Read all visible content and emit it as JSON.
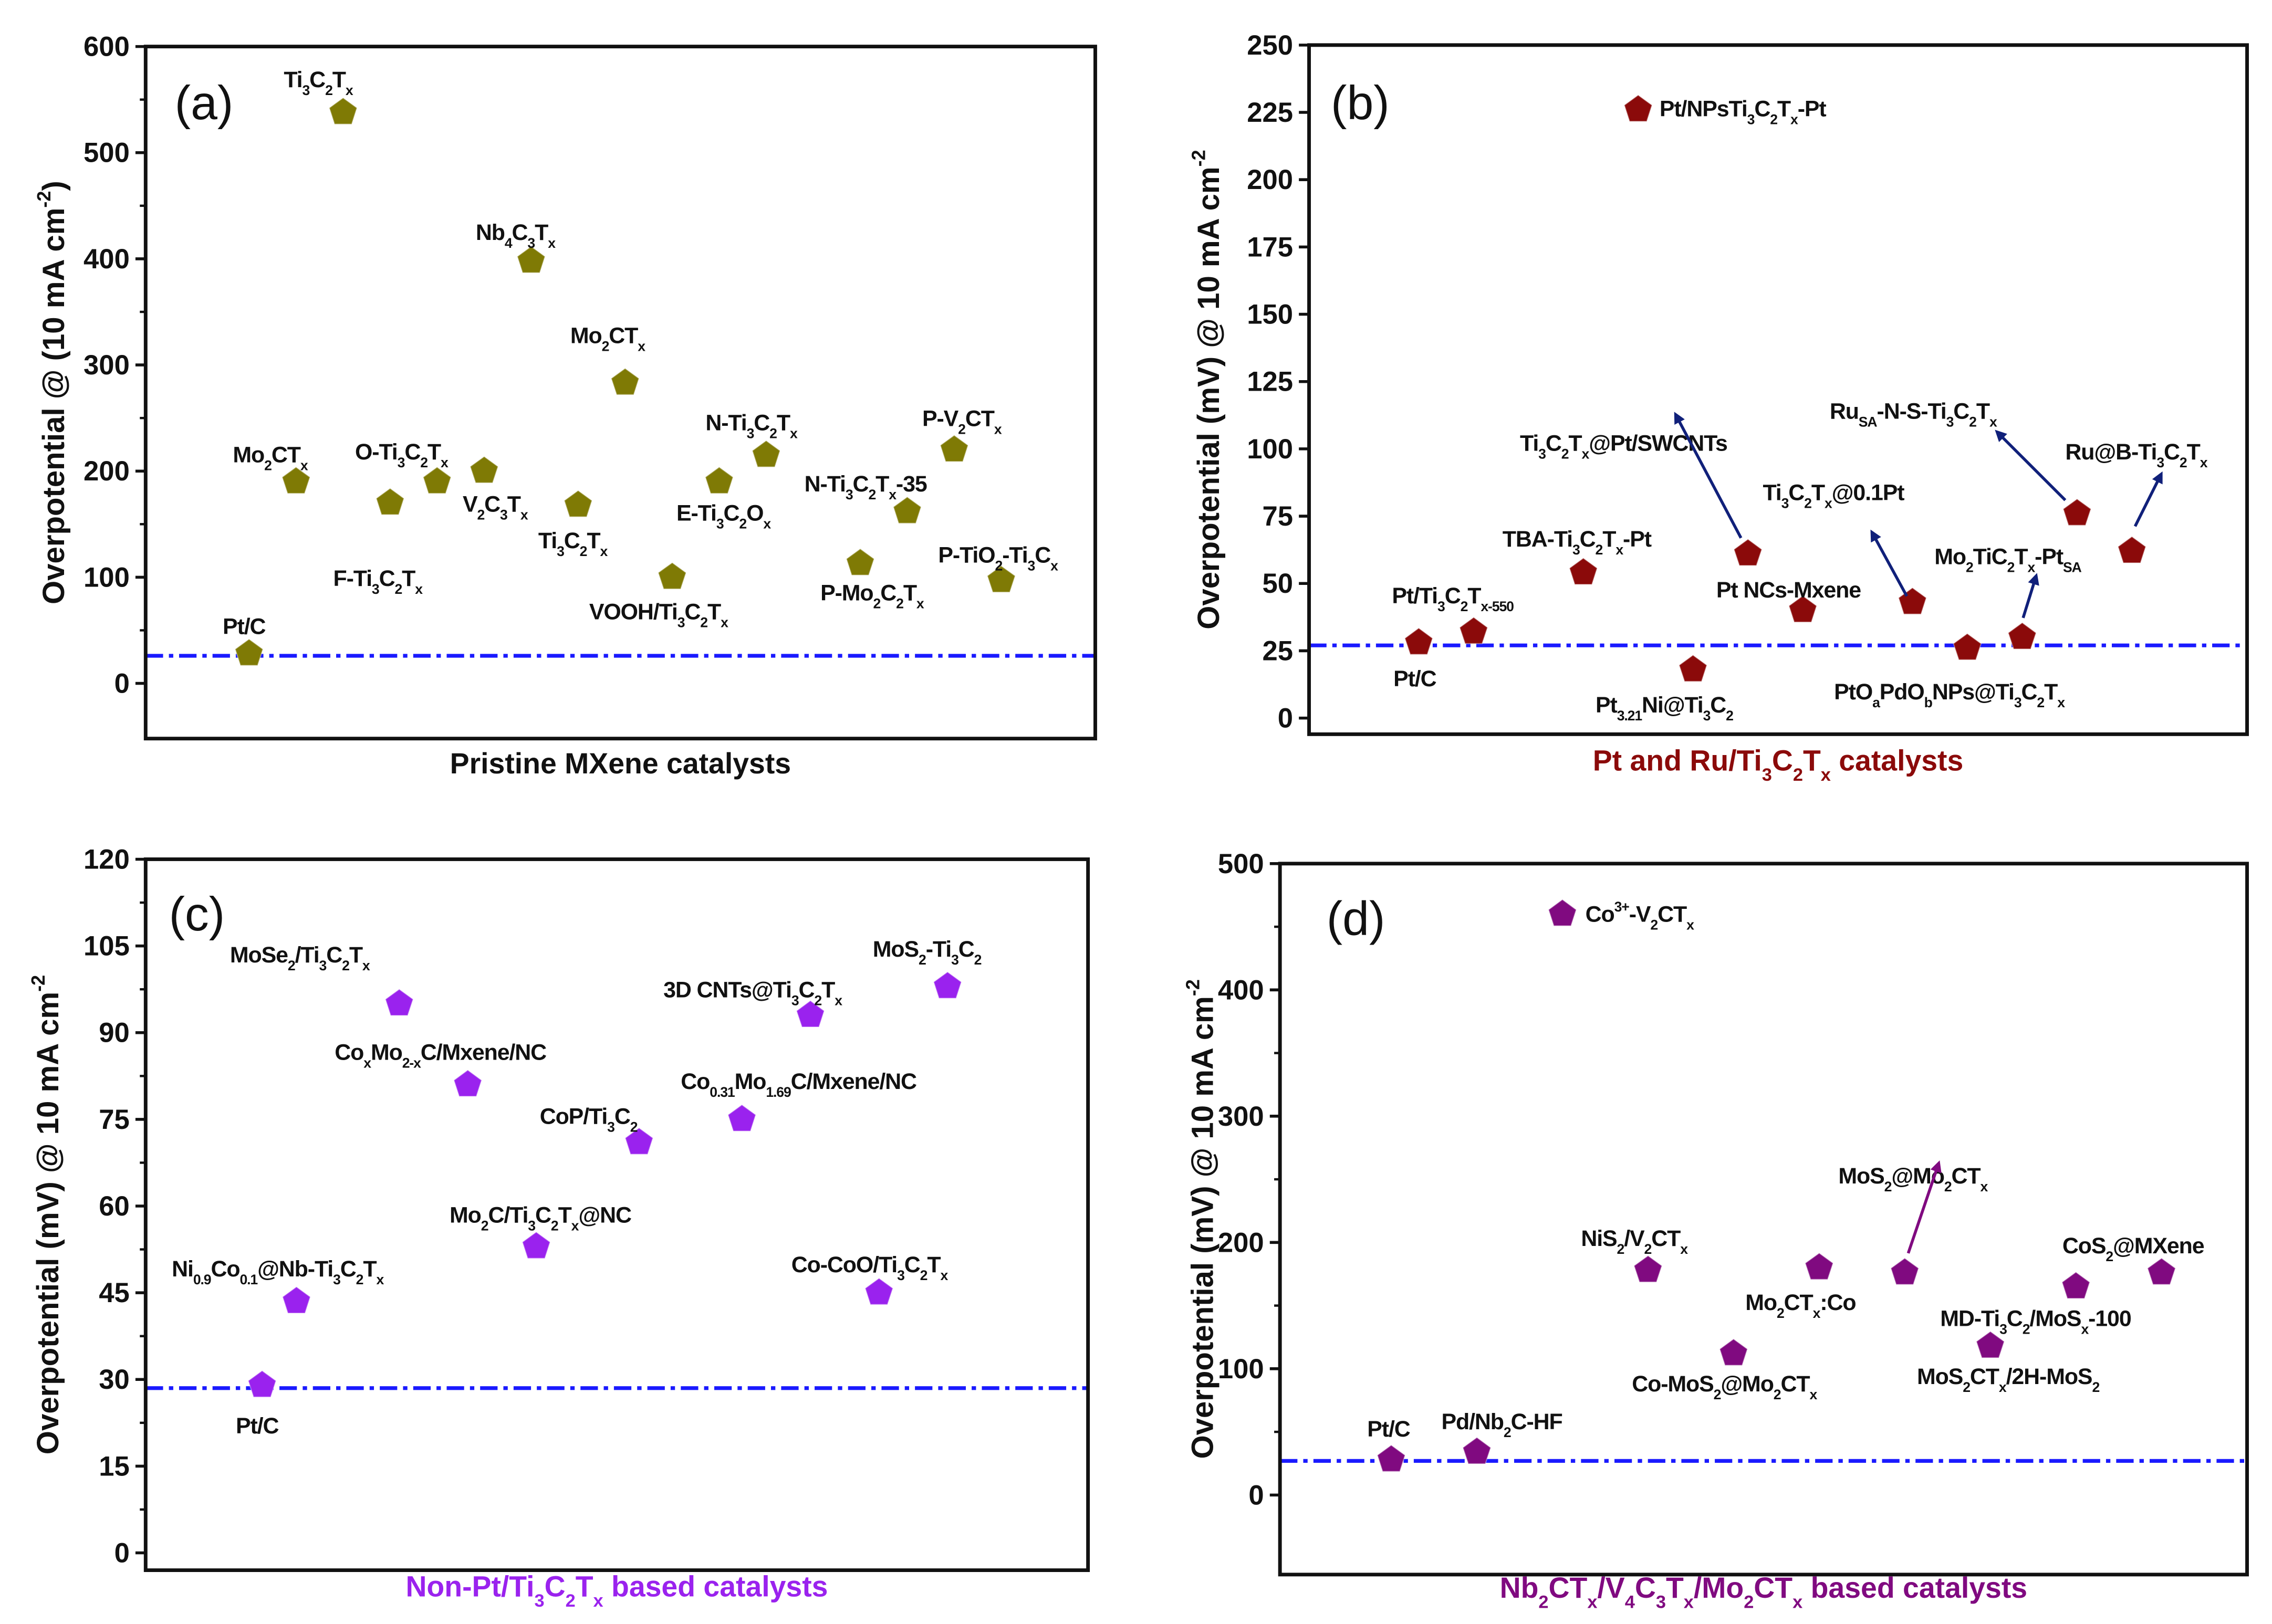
{
  "chart_data": [
    {
      "type": "scatter",
      "panel_label": "(a)",
      "title": "",
      "xlabel": "Pristine MXene catalysts",
      "xlabel_color": "#111111",
      "ylabel": "Overpotential @ (10 mA cm^{-2})",
      "ylim": [
        -52,
        600
      ],
      "xlim": [
        -2.2,
        18
      ],
      "yticks": [
        0,
        100,
        200,
        300,
        400,
        500,
        600
      ],
      "yminor_step": 50,
      "marker_color": "#7f7a05",
      "reference_line": {
        "value": 26,
        "color": "#1a1aff",
        "style": "dash-dot"
      },
      "points": [
        {
          "label": "Pt/C",
          "x": 0,
          "y": 28
        },
        {
          "label": "Mo_{2}CT_{x}",
          "x": 1,
          "y": 190
        },
        {
          "label": "Ti_{3}C_{2}T_{x}",
          "x": 2,
          "y": 538
        },
        {
          "label": "F-Ti_{3}C_{2}T_{x}",
          "x": 3,
          "y": 170
        },
        {
          "label": "O-Ti_{3}C_{2}T_{x}",
          "x": 4,
          "y": 190
        },
        {
          "label": "V_{2}C_{3}T_{x}",
          "x": 5,
          "y": 200
        },
        {
          "label": "Nb_{4}C_{3}T_{x}",
          "x": 6,
          "y": 398
        },
        {
          "label": "Ti_{3}C_{2}T_{x}",
          "x": 7,
          "y": 168
        },
        {
          "label": "Mo_{2}CT_{x}",
          "x": 8,
          "y": 283
        },
        {
          "label": "VOOH/Ti_{3}C_{2}T_{x}",
          "x": 9,
          "y": 100
        },
        {
          "label": "E-Ti_{3}C_{2}O_{x}",
          "x": 10,
          "y": 190
        },
        {
          "label": "N-Ti_{3}C_{2}T_{x}",
          "x": 11,
          "y": 215
        },
        {
          "label": "P-Mo_{2}C_{2}T_{x}",
          "x": 13,
          "y": 113
        },
        {
          "label": "N-Ti_{3}C_{2}T_{x}-35",
          "x": 14,
          "y": 162
        },
        {
          "label": "P-V_{2}CT_{x}",
          "x": 15,
          "y": 220
        },
        {
          "label": "P-TiO_{2}-Ti_{3}C_{x}",
          "x": 16,
          "y": 97
        }
      ]
    },
    {
      "type": "scatter",
      "panel_label": "(b)",
      "title": "",
      "xlabel": "Pt and Ru/Ti_{3}C_{2}T_{x} catalysts",
      "xlabel_color": "#8b0a0a",
      "ylabel": "Overpotential (mV) @ 10 mA cm^{-2}",
      "ylim": [
        -6,
        250
      ],
      "xlim": [
        -2,
        15.1
      ],
      "yticks": [
        0,
        25,
        50,
        75,
        100,
        125,
        150,
        175,
        200,
        225,
        250
      ],
      "yminor_step": 0,
      "marker_color": "#8b0a0a",
      "reference_line": {
        "value": 27,
        "color": "#1a1aff",
        "style": "dash-dot"
      },
      "points": [
        {
          "label": "Pt/C",
          "x": 0,
          "y": 28,
          "label_color": "#111111"
        },
        {
          "label": "Pt/Ti_{3}C_{2}T_{x-550}",
          "x": 1,
          "y": 32,
          "label_color": "#1e8c1e"
        },
        {
          "label": "TBA-Ti_{3}C_{2}T_{x}-Pt",
          "x": 3,
          "y": 54,
          "label_color": "#111111"
        },
        {
          "label": "Pt/NPsTi_{3}C_{2}T_{x}-Pt",
          "x": 4,
          "y": 226,
          "label_color": "#111111"
        },
        {
          "label": "Pt_{3.21}Ni@Ti_{3}C_{2}",
          "x": 5,
          "y": 18,
          "label_color": "#1e8c1e"
        },
        {
          "label": "Ti_{3}C_{2}T_{x}@Pt/SWCNTs",
          "x": 6,
          "y": 61,
          "label_color": "#111111"
        },
        {
          "label": "Pt NCs-Mxene",
          "x": 7,
          "y": 40,
          "label_color": "#111111"
        },
        {
          "label": "Ti_{3}C_{2}T_{x}@0.1Pt",
          "x": 9,
          "y": 43,
          "label_color": "#111111"
        },
        {
          "label": "PtO_{a}PdO_{b}NPs@Ti_{3}C_{2}T_{x}",
          "x": 10,
          "y": 26,
          "label_color": "#1e8c1e"
        },
        {
          "label": "Mo_{2}TiC_{2}T_{x}-Pt_{SA}",
          "x": 11,
          "y": 30,
          "label_color": "#1e8c1e"
        },
        {
          "label": "Ru_{SA}-N-S-Ti_{3}C_{2}T_{x}",
          "x": 12,
          "y": 76,
          "label_color": "#111111"
        },
        {
          "label": "Ru@B-Ti_{3}C_{2}T_{x}",
          "x": 13,
          "y": 62,
          "label_color": "#111111"
        }
      ]
    },
    {
      "type": "scatter",
      "panel_label": "(c)",
      "title": "",
      "xlabel": "Non-Pt/Ti_{3}C_{2}T_{x} based catalysts",
      "xlabel_color": "#9a22ee",
      "ylabel": "Overpotential (mV) @ 10 mA cm^{-2}",
      "ylim": [
        -3,
        120
      ],
      "xlim": [
        -3.4,
        24.1
      ],
      "yticks": [
        0,
        15,
        30,
        45,
        60,
        75,
        90,
        105,
        120
      ],
      "yminor_step": 7.5,
      "marker_color": "#9a22ee",
      "reference_line": {
        "value": 28.5,
        "color": "#1a1aff",
        "style": "dash-dot"
      },
      "points": [
        {
          "label": "Pt/C",
          "x": 0,
          "y": 29
        },
        {
          "label": "Ni_{0.9}Co_{0.1}@Nb-Ti_{3}C_{2}T_{x}",
          "x": 1,
          "y": 43.5
        },
        {
          "label": "MoSe_{2}/Ti_{3}C_{2}T_{x}",
          "x": 4,
          "y": 95
        },
        {
          "label": "Co_{x}Mo_{2-x}C/Mxene/NC",
          "x": 6,
          "y": 81
        },
        {
          "label": "Mo_{2}C/Ti_{3}C_{2}T_{x}@NC",
          "x": 8,
          "y": 53
        },
        {
          "label": "CoP/Ti_{3}C_{2}",
          "x": 11,
          "y": 71
        },
        {
          "label": "Co_{0.31}Mo_{1.69}C/Mxene/NC",
          "x": 14,
          "y": 75
        },
        {
          "label": "3D CNTs@Ti_{3}C_{2}T_{x}",
          "x": 16,
          "y": 93
        },
        {
          "label": "Co-CoO/Ti_{3}C_{2}T_{x}",
          "x": 18,
          "y": 45
        },
        {
          "label": "MoS_{2}-Ti_{3}C_{2}",
          "x": 20,
          "y": 98
        }
      ]
    },
    {
      "type": "scatter",
      "panel_label": "(d)",
      "title": "",
      "xlabel": "Nb_{2}CT_{x}/V_{4}C_{3}T_{x}/Mo_{2}CT_{x} based catalysts",
      "xlabel_color": "#800a80",
      "ylabel": "Overpotential (mV) @ 10 mA cm^{-2}",
      "ylim": [
        -63,
        500
      ],
      "xlim": [
        -1.3,
        10
      ],
      "yticks": [
        0,
        100,
        200,
        300,
        400,
        500
      ],
      "yminor_step": 50,
      "marker_color": "#800a80",
      "reference_line": {
        "value": 27,
        "color": "#1a1aff",
        "style": "dash-dot"
      },
      "points": [
        {
          "label": "Pt/C",
          "x": 0,
          "y": 28,
          "label_color": "#111111"
        },
        {
          "label": "Pd/Nb_{2}C-HF",
          "x": 1,
          "y": 34,
          "label_color": "#1e8c1e"
        },
        {
          "label": "Co^{3+}-V_{2}CT_{x}",
          "x": 2,
          "y": 460,
          "label_color": "#111111"
        },
        {
          "label": "NiS_{2}/V_{2}CT_{x}",
          "x": 3,
          "y": 178,
          "label_color": "#111111"
        },
        {
          "label": "Co-MoS_{2}@Mo_{2}CT_{x}",
          "x": 4,
          "y": 112,
          "label_color": "#111111"
        },
        {
          "label": "Mo_{2}CT_{x}:Co",
          "x": 5,
          "y": 180,
          "label_color": "#111111"
        },
        {
          "label": "MoS_{2}@Mo_{2}CT_{x}",
          "x": 6,
          "y": 176,
          "label_color": "#111111"
        },
        {
          "label": "MoS_{2}CT_{x}/2H-MoS_{2}",
          "x": 7,
          "y": 118,
          "label_color": "#111111"
        },
        {
          "label": "MD-Ti_{3}C_{2}/MoS_{x}-100",
          "x": 8,
          "y": 165,
          "label_color": "#111111"
        },
        {
          "label": "CoS_{2}@MXene",
          "x": 9,
          "y": 176,
          "label_color": "#111111"
        }
      ]
    }
  ]
}
